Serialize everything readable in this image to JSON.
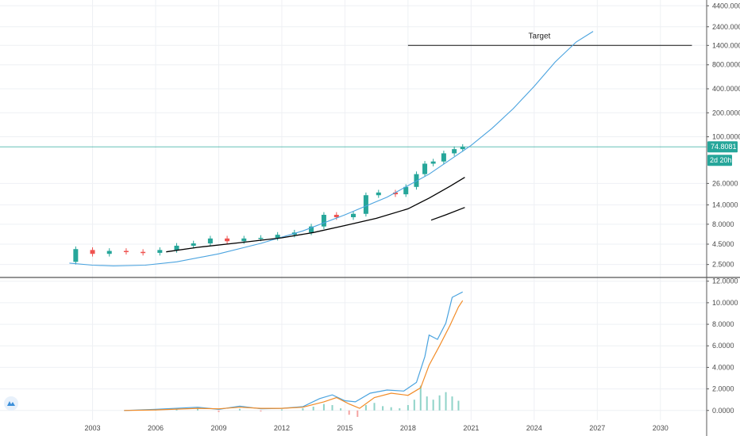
{
  "colors": {
    "grid": "#eef0f4",
    "axis_line": "#5a5a5a",
    "candle_up": "#26a69a",
    "candle_down": "#ef5350",
    "curve": "#4aa3df",
    "ma_line": "#000000",
    "current_price_line": "#26a69a",
    "macd_line": "#4aa3df",
    "signal_line": "#f28c28",
    "hist_pos": "#8fd3c8",
    "hist_neg": "#f4a3a1",
    "logo": "#3b8fd9"
  },
  "current_price": {
    "label": "74.8081",
    "countdown": "2d 20h",
    "value": 74.8081
  },
  "annotation": {
    "text": "Target",
    "value": 1400,
    "x_from": 2018.0,
    "x_to": 2031.5
  },
  "logo_icon": "tradingview-cloud-icon",
  "chart_data": [
    {
      "type": "line",
      "panel": "price",
      "scale": "log",
      "y_ticks": [
        "4400.0000",
        "2400.0000",
        "1400.0000",
        "800.0000",
        "400.0000",
        "200.0000",
        "100.0000",
        "26.0000",
        "14.0000",
        "8.0000",
        "4.5000",
        "2.5000"
      ],
      "y_tick_values": [
        4400,
        2400,
        1400,
        800,
        400,
        200,
        100,
        26,
        14,
        8,
        4.5,
        2.5
      ],
      "x_ticks": [
        "2003",
        "2006",
        "2009",
        "2012",
        "2015",
        "2018",
        "2021",
        "2024",
        "2027",
        "2030"
      ],
      "x_tick_values": [
        2003,
        2006,
        2009,
        2012,
        2015,
        2018,
        2021,
        2024,
        2027,
        2030
      ],
      "xlim": [
        1998.6,
        2032.2
      ],
      "ylim": [
        1.8,
        5200
      ],
      "candles": [
        {
          "x": 2002.2,
          "o": 2.7,
          "c": 3.9
        },
        {
          "x": 2003.0,
          "o": 3.8,
          "c": 3.4
        },
        {
          "x": 2003.8,
          "o": 3.4,
          "c": 3.7
        },
        {
          "x": 2004.6,
          "o": 3.7,
          "c": 3.6
        },
        {
          "x": 2005.4,
          "o": 3.6,
          "c": 3.5
        },
        {
          "x": 2006.2,
          "o": 3.5,
          "c": 3.8
        },
        {
          "x": 2007.0,
          "o": 3.8,
          "c": 4.3
        },
        {
          "x": 2007.8,
          "o": 4.3,
          "c": 4.6
        },
        {
          "x": 2008.6,
          "o": 4.6,
          "c": 5.3
        },
        {
          "x": 2009.4,
          "o": 5.3,
          "c": 4.9
        },
        {
          "x": 2010.2,
          "o": 4.9,
          "c": 5.3
        },
        {
          "x": 2011.0,
          "o": 5.3,
          "c": 5.4
        },
        {
          "x": 2011.8,
          "o": 5.4,
          "c": 5.9
        },
        {
          "x": 2012.6,
          "o": 5.9,
          "c": 6.3
        },
        {
          "x": 2013.4,
          "o": 6.3,
          "c": 7.5
        },
        {
          "x": 2014.0,
          "o": 7.5,
          "c": 10.5
        },
        {
          "x": 2014.6,
          "o": 10.5,
          "c": 9.8
        },
        {
          "x": 2015.4,
          "o": 9.8,
          "c": 10.8
        },
        {
          "x": 2016.0,
          "o": 10.8,
          "c": 18.5
        },
        {
          "x": 2016.6,
          "o": 18.5,
          "c": 20.0
        },
        {
          "x": 2017.4,
          "o": 20.0,
          "c": 19.0
        },
        {
          "x": 2017.9,
          "o": 19.0,
          "c": 23.5
        },
        {
          "x": 2018.4,
          "o": 23.5,
          "c": 34.0
        },
        {
          "x": 2018.8,
          "o": 34.0,
          "c": 46.0
        },
        {
          "x": 2019.2,
          "o": 46.0,
          "c": 49.0
        },
        {
          "x": 2019.7,
          "o": 49.0,
          "c": 62.0
        },
        {
          "x": 2020.2,
          "o": 62.0,
          "c": 70.0
        },
        {
          "x": 2020.6,
          "o": 70.0,
          "c": 74.8
        }
      ],
      "series": [
        {
          "x": [
            2001.9,
            2003.0,
            2004.0,
            2005.5,
            2007.0,
            2009.0,
            2011.0,
            2013.0,
            2015.0,
            2017.0,
            2019.0,
            2021.0,
            2022.0,
            2023.0,
            2024.0,
            2025.0,
            2026.0,
            2026.8
          ],
          "y": [
            2.6,
            2.45,
            2.4,
            2.45,
            2.7,
            3.4,
            4.6,
            6.6,
            10.5,
            17.5,
            34.0,
            78.0,
            128.0,
            225.0,
            430.0,
            870.0,
            1550.0,
            2100.0
          ]
        },
        {
          "x": [
            2006.5,
            2008.0,
            2010.0,
            2012.0,
            2013.5,
            2015.0,
            2016.5,
            2018.0,
            2019.0,
            2020.0,
            2020.7
          ],
          "y": [
            3.6,
            4.1,
            4.7,
            5.4,
            6.3,
            7.7,
            9.5,
            12.5,
            17.0,
            24.0,
            31.0
          ]
        },
        {
          "x": [
            2019.1,
            2019.8,
            2020.7
          ],
          "y": [
            9.0,
            10.5,
            13.0
          ]
        }
      ]
    },
    {
      "type": "line",
      "panel": "indicator",
      "y_ticks": [
        "12.0000",
        "10.0000",
        "8.0000",
        "6.0000",
        "4.0000",
        "2.0000",
        "0.0000"
      ],
      "y_tick_values": [
        12,
        10,
        8,
        6,
        4,
        2,
        0
      ],
      "xlim": [
        1998.6,
        2032.2
      ],
      "ylim": [
        -0.9,
        12.2
      ],
      "series": [
        {
          "x": [
            2004.5,
            2006.0,
            2008.0,
            2009.0,
            2010.0,
            2011.0,
            2012.0,
            2013.0,
            2013.8,
            2014.4,
            2015.0,
            2015.5,
            2016.2,
            2017.0,
            2017.8,
            2018.4,
            2018.8,
            2019.0,
            2019.4,
            2019.8,
            2020.1,
            2020.4,
            2020.6
          ],
          "y": [
            0.0,
            0.1,
            0.3,
            0.1,
            0.4,
            0.15,
            0.2,
            0.35,
            1.1,
            1.45,
            0.9,
            0.8,
            1.6,
            1.9,
            1.8,
            2.6,
            5.0,
            7.0,
            6.6,
            8.1,
            10.5,
            10.8,
            11.0
          ]
        },
        {
          "x": [
            2004.5,
            2006.0,
            2008.0,
            2009.0,
            2010.0,
            2011.0,
            2012.0,
            2013.0,
            2014.0,
            2014.6,
            2015.2,
            2015.7,
            2016.4,
            2017.2,
            2018.0,
            2018.6,
            2019.0,
            2019.5,
            2020.0,
            2020.4,
            2020.6
          ],
          "y": [
            0.0,
            0.05,
            0.2,
            0.15,
            0.3,
            0.2,
            0.2,
            0.3,
            0.8,
            1.2,
            0.6,
            0.2,
            1.2,
            1.6,
            1.4,
            2.1,
            4.2,
            6.0,
            7.9,
            9.6,
            10.2
          ]
        }
      ],
      "histogram": {
        "x": [
          2005.0,
          2006.0,
          2007.0,
          2008.0,
          2009.0,
          2010.0,
          2011.0,
          2012.0,
          2013.0,
          2013.5,
          2014.0,
          2014.4,
          2014.8,
          2015.2,
          2015.6,
          2016.0,
          2016.4,
          2016.8,
          2017.2,
          2017.6,
          2018.0,
          2018.3,
          2018.6,
          2018.9,
          2019.2,
          2019.5,
          2019.8,
          2020.1,
          2020.4
        ],
        "values": [
          0.05,
          0.1,
          0.15,
          0.2,
          -0.15,
          0.15,
          -0.1,
          0.1,
          0.2,
          0.35,
          0.6,
          0.5,
          0.2,
          -0.4,
          -0.6,
          0.5,
          0.7,
          0.4,
          0.3,
          0.2,
          0.5,
          1.0,
          2.3,
          1.3,
          1.0,
          1.4,
          1.7,
          1.3,
          0.9
        ]
      }
    }
  ]
}
